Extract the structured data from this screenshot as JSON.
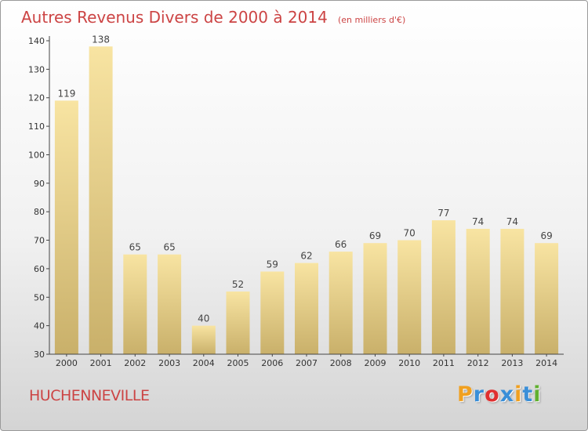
{
  "title": "Autres Revenus Divers de 2000 à 2014",
  "subtitle": "(en milliers d'€)",
  "commune": "HUCHENNEVILLE",
  "logo": {
    "letters": [
      "P",
      "r",
      "o",
      "x",
      "i",
      "t",
      "i"
    ],
    "colors": [
      "#f0a020",
      "#3a8fd8",
      "#e03030",
      "#3a8fd8",
      "#f0a020",
      "#3a8fd8",
      "#60b030"
    ]
  },
  "colors": {
    "title": "#cc4444",
    "bar_light": "#f8e4a2",
    "bar_dark": "#c9b06a"
  },
  "chart_data": {
    "type": "bar",
    "categories": [
      "2000",
      "2001",
      "2002",
      "2003",
      "2004",
      "2005",
      "2006",
      "2007",
      "2008",
      "2009",
      "2010",
      "2011",
      "2012",
      "2013",
      "2014"
    ],
    "values": [
      119,
      138,
      65,
      65,
      40,
      52,
      59,
      62,
      66,
      69,
      70,
      77,
      74,
      74,
      69
    ],
    "title": "Autres Revenus Divers de 2000 à 2014",
    "xlabel": "",
    "ylabel": "",
    "ylim": [
      30,
      140
    ],
    "yticks": [
      30,
      40,
      50,
      60,
      70,
      80,
      90,
      100,
      110,
      120,
      130,
      140
    ],
    "grid": false,
    "legend": "none"
  }
}
